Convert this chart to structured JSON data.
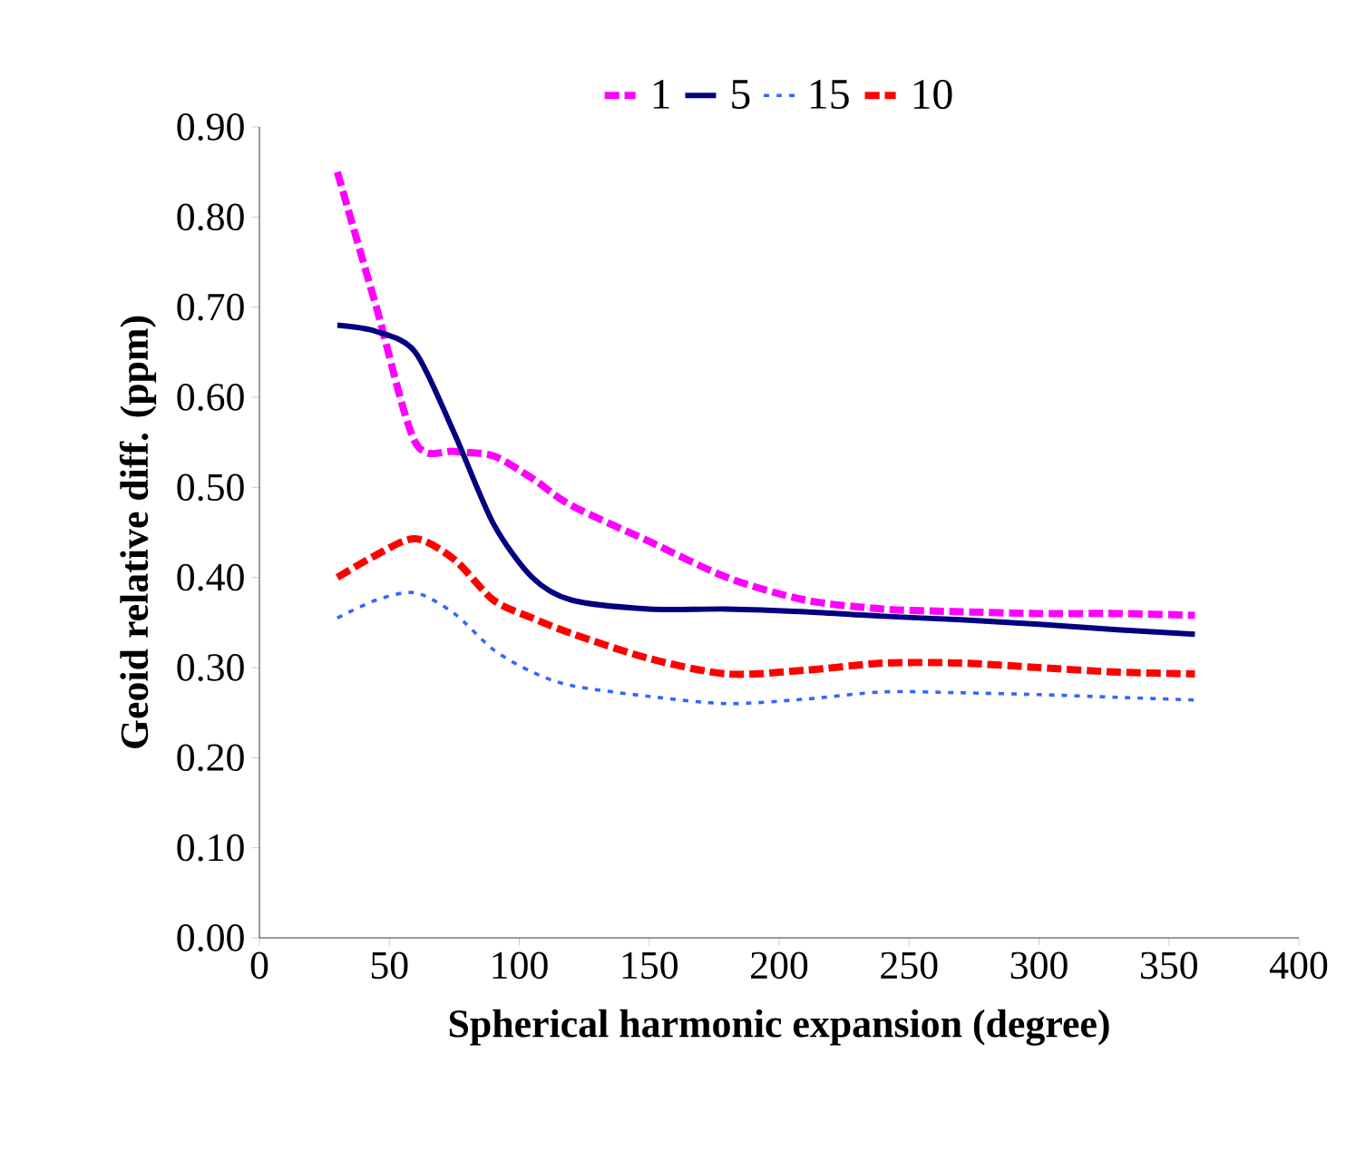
{
  "chart_data": {
    "type": "line",
    "xlabel": "Spherical harmonic expansion (degree)",
    "ylabel": "Geoid relative diff. (ppm)",
    "xlim": [
      0,
      400
    ],
    "xticks": [
      0,
      50,
      100,
      150,
      200,
      250,
      300,
      350,
      400
    ],
    "ylim": [
      0,
      0.9
    ],
    "yticks": [
      {
        "value": 0,
        "label": "0.00"
      },
      {
        "value": 0.1,
        "label": "0.10"
      },
      {
        "value": 0.2,
        "label": "0.20"
      },
      {
        "value": 0.3,
        "label": "0.30"
      },
      {
        "value": 0.4,
        "label": "0.40"
      },
      {
        "value": 0.5,
        "label": "0.50"
      },
      {
        "value": 0.6,
        "label": "0.60"
      },
      {
        "value": 0.7,
        "label": "0.70"
      },
      {
        "value": 0.8,
        "label": "0.80"
      },
      {
        "value": 0.9,
        "label": "0.90"
      }
    ],
    "grid": false,
    "legend": "top",
    "marker": "none",
    "x": [
      30,
      45,
      60,
      75,
      90,
      105,
      120,
      150,
      180,
      210,
      240,
      270,
      300,
      330,
      360
    ],
    "series": [
      {
        "name": "1",
        "color": "#ff00ff",
        "line_style": "dashed",
        "values": [
          0.85,
          0.7,
          0.55,
          0.54,
          0.535,
          0.51,
          0.48,
          0.44,
          0.4,
          0.375,
          0.365,
          0.362,
          0.36,
          0.36,
          0.358
        ]
      },
      {
        "name": "5",
        "color": "#000080",
        "line_style": "solid",
        "values": [
          0.68,
          0.673,
          0.65,
          0.56,
          0.46,
          0.4,
          0.375,
          0.365,
          0.365,
          0.362,
          0.357,
          0.353,
          0.348,
          0.342,
          0.337
        ]
      },
      {
        "name": "15",
        "color": "#3366ff",
        "line_style": "dotted",
        "values": [
          0.355,
          0.375,
          0.383,
          0.36,
          0.32,
          0.295,
          0.28,
          0.268,
          0.26,
          0.265,
          0.273,
          0.272,
          0.27,
          0.267,
          0.264
        ]
      },
      {
        "name": "10",
        "color": "#ff0000",
        "line_style": "dashed",
        "values": [
          0.4,
          0.425,
          0.443,
          0.42,
          0.375,
          0.355,
          0.338,
          0.31,
          0.293,
          0.297,
          0.305,
          0.305,
          0.3,
          0.295,
          0.293
        ]
      }
    ]
  }
}
